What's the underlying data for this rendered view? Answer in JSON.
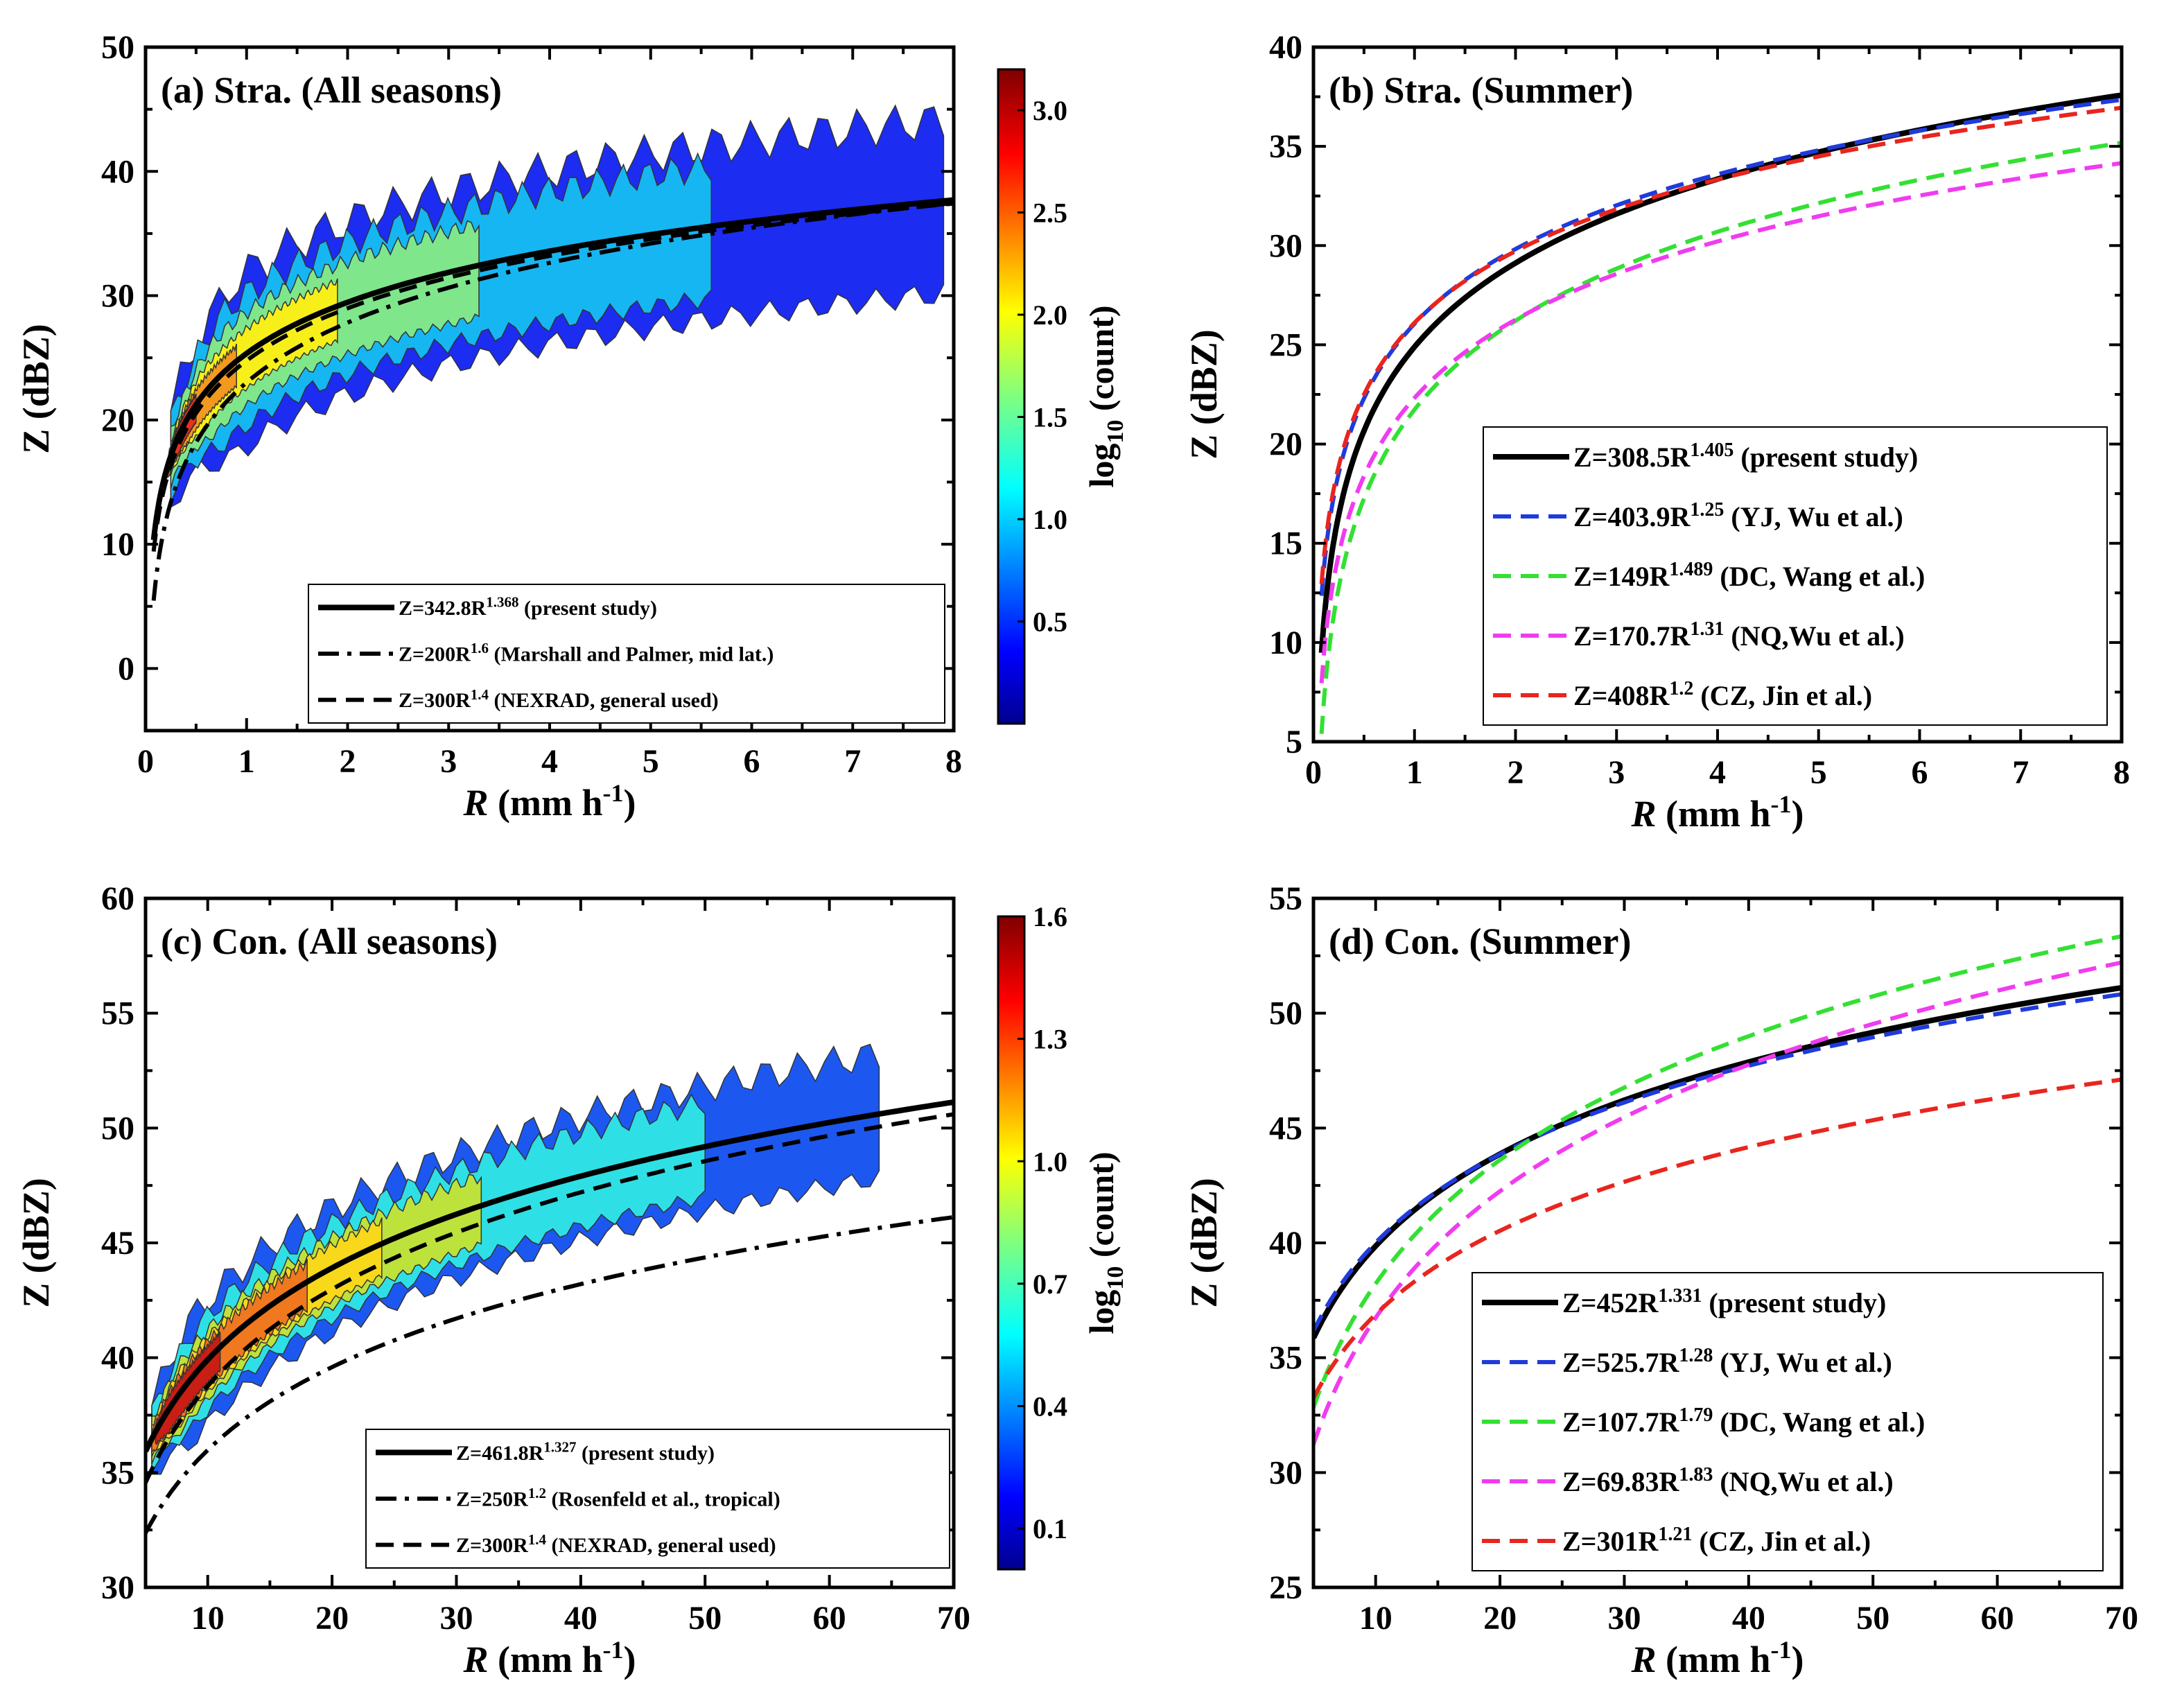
{
  "chart_data": [
    {
      "id": "a",
      "type": "contour-density+line",
      "title": "(a) Stra. (All seasons)",
      "xlabel_italic": "R",
      "xlabel_rest": " (mm h",
      "xlabel_sup": "-1",
      "xlabel_close": ")",
      "ylabel": "Z (dBZ)",
      "xlim": [
        0,
        8
      ],
      "ylim": [
        -5,
        50
      ],
      "xticks": [
        0,
        1,
        2,
        3,
        4,
        5,
        6,
        7,
        8
      ],
      "yticks": [
        0,
        10,
        20,
        30,
        40,
        50
      ],
      "colorbar": {
        "label_pre": "log",
        "label_sub": "10",
        "label_post": " (count)",
        "range": [
          0,
          3.2
        ],
        "ticks": [
          "0.5",
          "1.0",
          "1.5",
          "2.0",
          "2.5",
          "3.0"
        ]
      },
      "legend_position": "bottom-right",
      "series": [
        {
          "name": "present study",
          "a": 342.8,
          "b": 1.368,
          "style": "solid",
          "color": "#000000",
          "label_pre": "Z=342.8R",
          "label_sup": "1.368",
          "label_post": " (present study)"
        },
        {
          "name": "Marshall and Palmer",
          "a": 200,
          "b": 1.6,
          "style": "dashdot",
          "color": "#000000",
          "label_pre": "Z=200R",
          "label_sup": "1.6",
          "label_post": " (Marshall and Palmer, mid lat.)"
        },
        {
          "name": "NEXRAD",
          "a": 300,
          "b": 1.4,
          "style": "dashed",
          "color": "#000000",
          "label_pre": "Z=300R",
          "label_sup": "1.4",
          "label_post": " (NEXRAD, general used)"
        }
      ]
    },
    {
      "id": "b",
      "type": "line",
      "title": "(b) Stra. (Summer)",
      "xlabel_italic": "R",
      "xlabel_rest": " (mm h",
      "xlabel_sup": "-1",
      "xlabel_close": ")",
      "ylabel": "Z (dBZ)",
      "xlim": [
        0,
        8
      ],
      "ylim": [
        5,
        40
      ],
      "xticks": [
        0,
        1,
        2,
        3,
        4,
        5,
        6,
        7,
        8
      ],
      "yticks": [
        5,
        10,
        15,
        20,
        25,
        30,
        35,
        40
      ],
      "legend_position": "bottom-right",
      "series": [
        {
          "name": "present study",
          "a": 308.5,
          "b": 1.405,
          "style": "solid",
          "color": "#000000",
          "label_pre": "Z=308.5R",
          "label_sup": "1.405",
          "label_post": " (present study)"
        },
        {
          "name": "YJ, Wu et al.",
          "a": 403.9,
          "b": 1.25,
          "style": "dashed",
          "color": "#1f3bdc",
          "label_pre": "Z=403.9R",
          "label_sup": "1.25",
          "label_post": " (YJ, Wu et al.)"
        },
        {
          "name": "DC, Wang et al.",
          "a": 149,
          "b": 1.489,
          "style": "dashed",
          "color": "#33e033",
          "label_pre": "Z=149R",
          "label_sup": "1.489",
          "label_post": " (DC, Wang et al.)"
        },
        {
          "name": "NQ, Wu et al.",
          "a": 170.7,
          "b": 1.31,
          "style": "dashed",
          "color": "#f03cf0",
          "label_pre": "Z=170.7R",
          "label_sup": "1.31",
          "label_post": " (NQ,Wu et al.)"
        },
        {
          "name": "CZ, Jin et al.",
          "a": 408,
          "b": 1.2,
          "style": "dashed",
          "color": "#e8251e",
          "label_pre": "Z=408R",
          "label_sup": "1.2",
          "label_post": " (CZ, Jin et al.)"
        }
      ]
    },
    {
      "id": "c",
      "type": "contour-density+line",
      "title": "(c) Con. (All seasons)",
      "xlabel_italic": "R",
      "xlabel_rest": " (mm h",
      "xlabel_sup": "-1",
      "xlabel_close": ")",
      "ylabel": "Z (dBZ)",
      "xlim": [
        5,
        70
      ],
      "ylim": [
        30,
        60
      ],
      "xticks": [
        10,
        20,
        30,
        40,
        50,
        60,
        70
      ],
      "yticks": [
        30,
        35,
        40,
        45,
        50,
        55,
        60
      ],
      "colorbar": {
        "label_pre": "log",
        "label_sub": "10",
        "label_post": " (count)",
        "range": [
          0,
          1.6
        ],
        "ticks": [
          "0.1",
          "0.4",
          "0.7",
          "1.0",
          "1.3",
          "1.6"
        ]
      },
      "legend_position": "bottom-right",
      "series": [
        {
          "name": "present study",
          "a": 461.8,
          "b": 1.327,
          "style": "solid",
          "color": "#000000",
          "label_pre": "Z=461.8R",
          "label_sup": "1.327",
          "label_post": " (present study)"
        },
        {
          "name": "Rosenfeld et al.",
          "a": 250,
          "b": 1.2,
          "style": "dashdot",
          "color": "#000000",
          "label_pre": "Z=250R",
          "label_sup": "1.2",
          "label_post": " (Rosenfeld et al., tropical)"
        },
        {
          "name": "NEXRAD",
          "a": 300,
          "b": 1.4,
          "style": "dashed",
          "color": "#000000",
          "label_pre": "Z=300R",
          "label_sup": "1.4",
          "label_post": " (NEXRAD, general used)"
        }
      ]
    },
    {
      "id": "d",
      "type": "line",
      "title": "(d) Con. (Summer)",
      "xlabel_italic": "R",
      "xlabel_rest": " (mm h",
      "xlabel_sup": "-1",
      "xlabel_close": ")",
      "ylabel": "Z (dBZ)",
      "xlim": [
        5,
        70
      ],
      "ylim": [
        25,
        55
      ],
      "xticks": [
        10,
        20,
        30,
        40,
        50,
        60,
        70
      ],
      "yticks": [
        25,
        30,
        35,
        40,
        45,
        50,
        55
      ],
      "legend_position": "bottom-right",
      "series": [
        {
          "name": "present study",
          "a": 452,
          "b": 1.331,
          "style": "solid",
          "color": "#000000",
          "label_pre": "Z=452R",
          "label_sup": "1.331",
          "label_post": " (present study)"
        },
        {
          "name": "YJ, Wu et al.",
          "a": 525.7,
          "b": 1.28,
          "style": "dashed",
          "color": "#1f3bdc",
          "label_pre": "Z=525.7R",
          "label_sup": "1.28",
          "label_post": " (YJ, Wu et al.)"
        },
        {
          "name": "DC, Wang et al.",
          "a": 107.7,
          "b": 1.79,
          "style": "dashed",
          "color": "#33e033",
          "label_pre": "Z=107.7R",
          "label_sup": "1.79",
          "label_post": " (DC, Wang et al.)"
        },
        {
          "name": "NQ, Wu et al.",
          "a": 69.83,
          "b": 1.83,
          "style": "dashed",
          "color": "#f03cf0",
          "label_pre": "Z=69.83R",
          "label_sup": "1.83",
          "label_post": " (NQ,Wu et al.)"
        },
        {
          "name": "CZ, Jin et al.",
          "a": 301,
          "b": 1.21,
          "style": "dashed",
          "color": "#e8251e",
          "label_pre": "Z=301R",
          "label_sup": "1.21",
          "label_post": " (CZ, Jin et al.)"
        }
      ]
    }
  ]
}
